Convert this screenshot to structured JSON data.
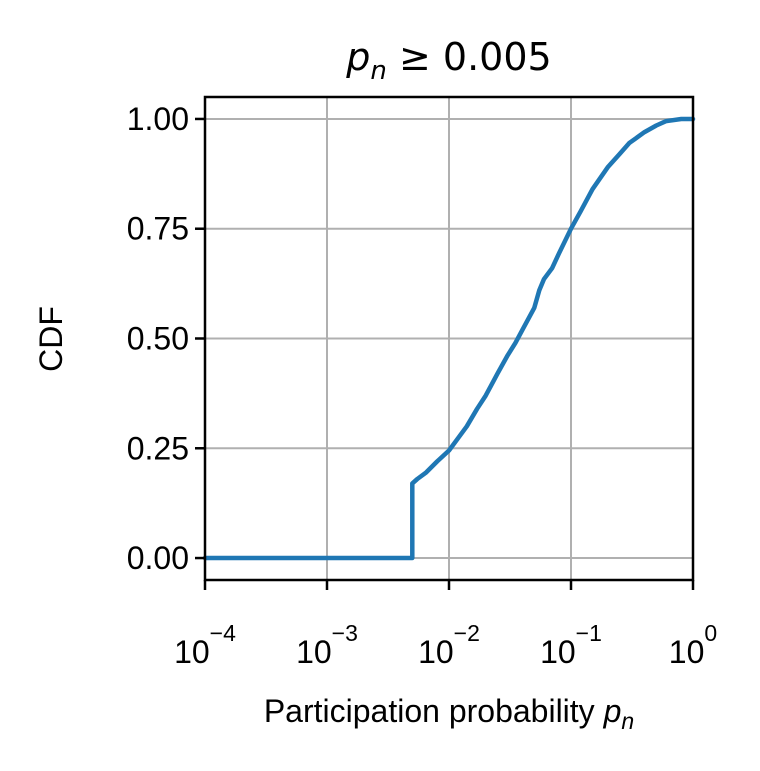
{
  "chart_data": {
    "type": "line",
    "title": "p_n ≥ 0.005",
    "title_parts": {
      "var": "p",
      "sub": "n",
      "rest": " ≥ 0.005"
    },
    "xlabel": "Participation probability p_n",
    "xlabel_parts": {
      "text": "Participation probability ",
      "var": "p",
      "sub": "n"
    },
    "ylabel": "CDF",
    "xscale": "log",
    "xlim": [
      0.0001,
      1
    ],
    "ylim": [
      -0.05,
      1.05
    ],
    "xticks": [
      {
        "value": 0.0001,
        "base": "10",
        "exp": "−4"
      },
      {
        "value": 0.001,
        "base": "10",
        "exp": "−3"
      },
      {
        "value": 0.01,
        "base": "10",
        "exp": "−2"
      },
      {
        "value": 0.1,
        "base": "10",
        "exp": "−1"
      },
      {
        "value": 1,
        "base": "10",
        "exp": "0"
      }
    ],
    "yticks": [
      {
        "value": 0,
        "label": "0.00"
      },
      {
        "value": 0.25,
        "label": "0.25"
      },
      {
        "value": 0.5,
        "label": "0.50"
      },
      {
        "value": 0.75,
        "label": "0.75"
      },
      {
        "value": 1,
        "label": "1.00"
      }
    ],
    "grid": true,
    "series": [
      {
        "color": "#1f77b4",
        "x": [
          0.0001,
          0.005,
          0.005,
          0.0055,
          0.0065,
          0.008,
          0.01,
          0.012,
          0.014,
          0.017,
          0.02,
          0.025,
          0.03,
          0.035,
          0.04,
          0.05,
          0.055,
          0.06,
          0.07,
          0.08,
          0.1,
          0.12,
          0.15,
          0.2,
          0.25,
          0.3,
          0.4,
          0.5,
          0.6,
          0.8,
          1.0
        ],
        "y": [
          0.0,
          0.0,
          0.17,
          0.18,
          0.195,
          0.22,
          0.245,
          0.275,
          0.3,
          0.34,
          0.37,
          0.42,
          0.46,
          0.49,
          0.52,
          0.57,
          0.61,
          0.635,
          0.66,
          0.695,
          0.75,
          0.79,
          0.84,
          0.89,
          0.92,
          0.945,
          0.97,
          0.985,
          0.995,
          1.0,
          1.0
        ]
      }
    ]
  }
}
